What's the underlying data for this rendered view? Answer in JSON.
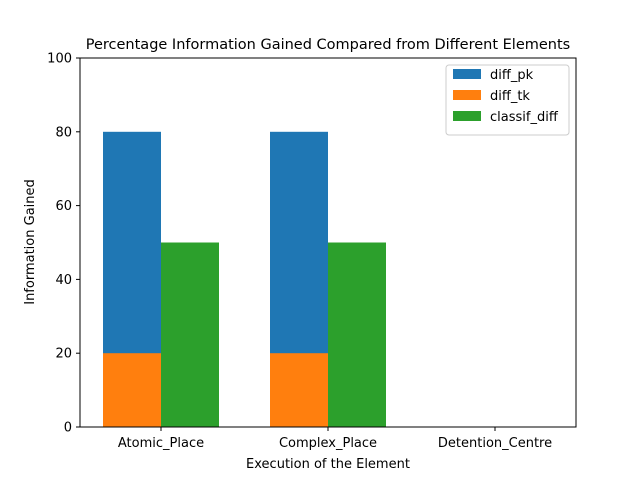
{
  "chart_data": {
    "type": "bar",
    "title": "Percentage Information Gained Compared from Different Elements",
    "xlabel": "Execution of the Element",
    "ylabel": "Information Gained",
    "categories": [
      "Atomic_Place",
      "Complex_Place",
      "Detention_Centre"
    ],
    "ylim": [
      0,
      100
    ],
    "yticks": [
      0,
      20,
      40,
      60,
      80,
      100
    ],
    "series": [
      {
        "name": "diff_pk",
        "values": [
          80,
          80,
          0
        ],
        "color": "#1f77b4"
      },
      {
        "name": "diff_tk",
        "values": [
          20,
          20,
          0
        ],
        "color": "#ff7f0e"
      },
      {
        "name": "classif_diff",
        "values": [
          50,
          50,
          0
        ],
        "color": "#2ca02c"
      }
    ],
    "legend_position": "top-right",
    "grid": false
  }
}
